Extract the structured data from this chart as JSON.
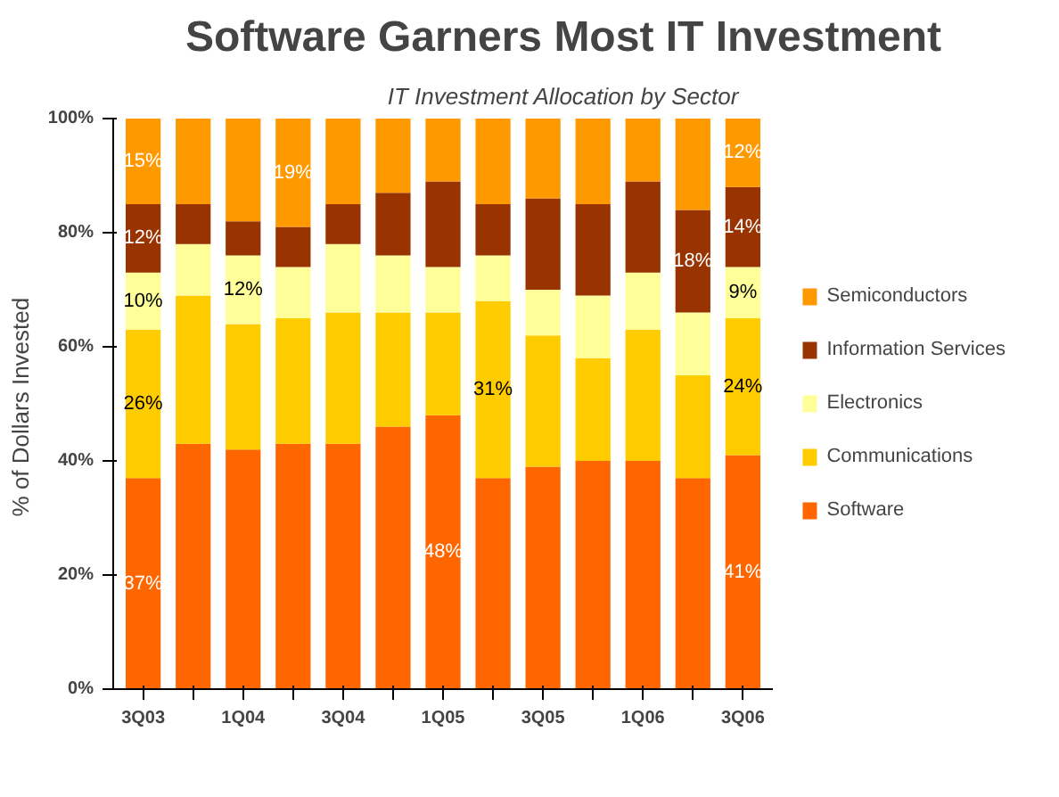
{
  "chart_data": {
    "type": "bar",
    "stacked": true,
    "title": "Software Garners Most IT Investment",
    "subtitle": "IT Investment Allocation by Sector",
    "ylabel": "% of  Dollars Invested",
    "categories": [
      "3Q03",
      null,
      "1Q04",
      null,
      "3Q04",
      null,
      "1Q05",
      null,
      "3Q05",
      null,
      "1Q06",
      null,
      "3Q06"
    ],
    "series": [
      {
        "name": "Software",
        "color": "#ff6600",
        "values": [
          37,
          43,
          42,
          43,
          43,
          46,
          48,
          37,
          39,
          40,
          40,
          37,
          41
        ],
        "value_labels": [
          "37%",
          null,
          null,
          null,
          null,
          null,
          "48%",
          null,
          null,
          null,
          null,
          null,
          "41%"
        ]
      },
      {
        "name": "Communications",
        "color": "#ffcc00",
        "values": [
          26,
          26,
          22,
          22,
          23,
          20,
          18,
          31,
          23,
          18,
          23,
          18,
          24
        ],
        "value_labels": [
          "26%",
          null,
          null,
          null,
          null,
          null,
          null,
          "31%",
          null,
          null,
          null,
          null,
          "24%"
        ]
      },
      {
        "name": "Electronics",
        "color": "#ffff99",
        "values": [
          10,
          9,
          12,
          9,
          12,
          10,
          8,
          8,
          8,
          11,
          10,
          11,
          9
        ],
        "value_labels": [
          "10%",
          null,
          "12%",
          null,
          null,
          null,
          null,
          null,
          null,
          null,
          null,
          null,
          "9%"
        ]
      },
      {
        "name": "Information Services",
        "color": "#993300",
        "values": [
          12,
          7,
          6,
          7,
          7,
          11,
          15,
          9,
          16,
          16,
          16,
          18,
          14
        ],
        "value_labels": [
          "12%",
          null,
          null,
          null,
          null,
          null,
          null,
          null,
          null,
          null,
          null,
          "18%",
          "14%"
        ]
      },
      {
        "name": "Semiconductors",
        "color": "#ff9900",
        "values": [
          15,
          15,
          18,
          19,
          15,
          13,
          11,
          15,
          14,
          15,
          11,
          16,
          12
        ],
        "value_labels": [
          "15%",
          null,
          null,
          "19%",
          null,
          null,
          null,
          null,
          null,
          null,
          null,
          null,
          "12%"
        ]
      }
    ],
    "ylim": [
      0,
      100
    ],
    "yticks": [
      {
        "value": 0,
        "label": "0%"
      },
      {
        "value": 20,
        "label": "20%"
      },
      {
        "value": 40,
        "label": "40%"
      },
      {
        "value": 60,
        "label": "60%"
      },
      {
        "value": 80,
        "label": "80%"
      },
      {
        "value": 100,
        "label": "100%"
      }
    ],
    "grid": false,
    "legend": "right"
  }
}
